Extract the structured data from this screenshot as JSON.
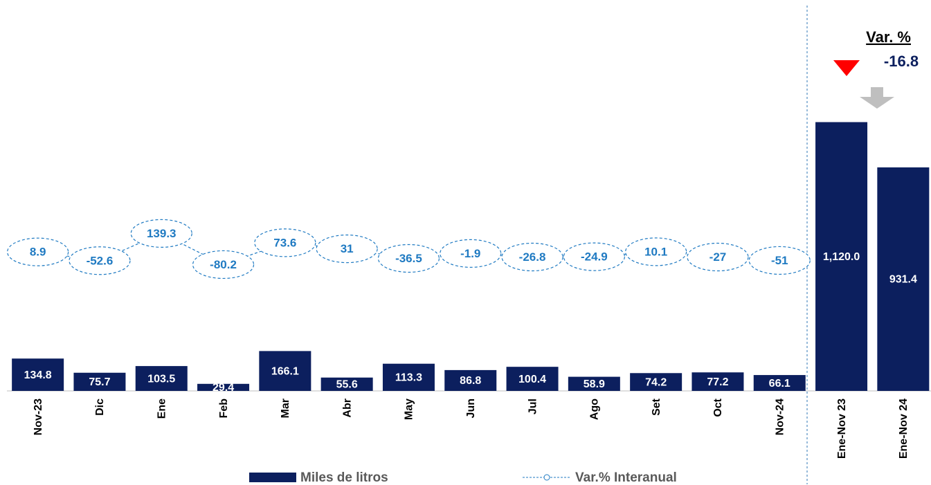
{
  "chart_data": {
    "type": "bar",
    "categories": [
      "Nov-23",
      "Dic",
      "Ene",
      "Feb",
      "Mar",
      "Abr",
      "May",
      "Jun",
      "Jul",
      "Ago",
      "Set",
      "Oct",
      "Nov-24",
      "Ene-Nov 23",
      "Ene-Nov 24"
    ],
    "ylim": [
      0,
      1600
    ],
    "y2lim": [
      -970,
      1735
    ],
    "series": [
      {
        "name": "Miles de litros",
        "color": "#0c1f5e",
        "values": [
          134.8,
          75.7,
          103.5,
          29.4,
          166.1,
          55.6,
          113.3,
          86.8,
          100.4,
          58.9,
          74.2,
          77.2,
          66.1,
          1120.0,
          931.4
        ],
        "value_labels": [
          "134.8",
          "75.7",
          "103.5",
          "29.4",
          "166.1",
          "55.6",
          "113.3",
          "86.8",
          "100.4",
          "58.9",
          "74.2",
          "77.2",
          "66.1",
          "1,120.0",
          "931.4"
        ]
      },
      {
        "name": "Var.% Interanual",
        "color": "#1f7ac2",
        "axis": "y2",
        "type": "line",
        "values": [
          8.9,
          -52.6,
          139.3,
          -80.2,
          73.6,
          31.0,
          -36.5,
          -1.9,
          -26.8,
          -24.9,
          10.1,
          -27.0,
          -51.0,
          null,
          null
        ]
      }
    ],
    "variation": {
      "label": "Var. %",
      "value": -16.8
    }
  }
}
